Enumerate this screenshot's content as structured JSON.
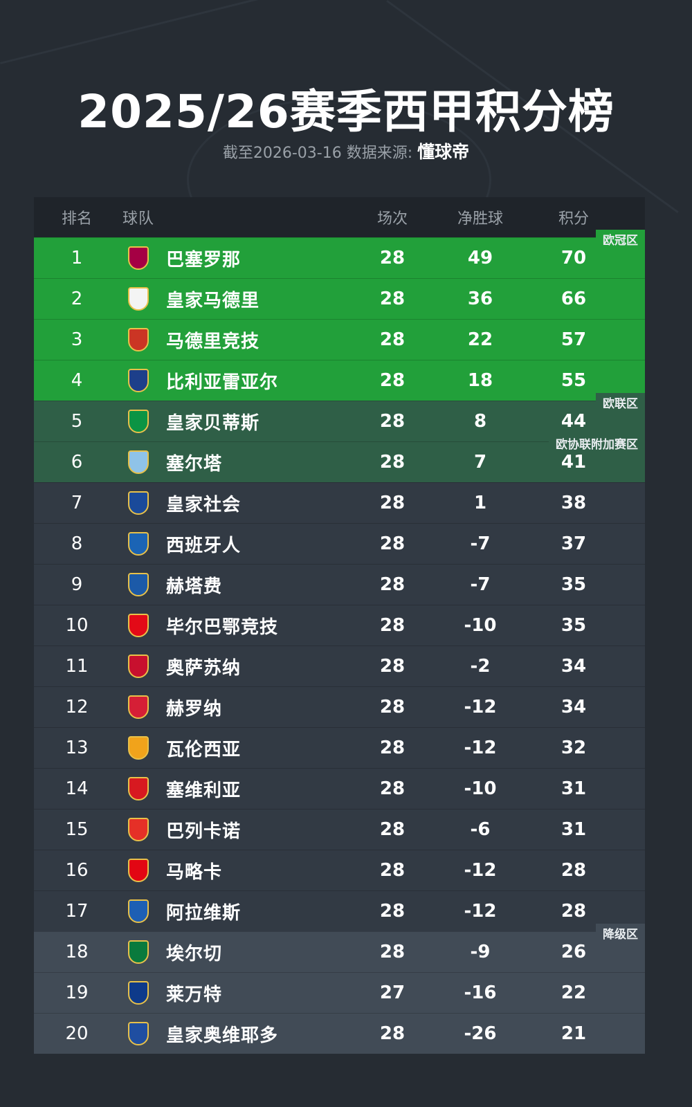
{
  "title": "2025/26赛季西甲积分榜",
  "subtitle": {
    "prefix": "截至2026-03-16 数据来源:",
    "source": "懂球帝"
  },
  "columns": {
    "rank": "排名",
    "team": "球队",
    "played": "场次",
    "goal_diff": "净胜球",
    "points": "积分"
  },
  "zones": {
    "ucl": "欧冠区",
    "uel": "欧联区",
    "uecl": "欧协联附加赛区",
    "releg": "降级区"
  },
  "colors": {
    "ucl": "#22a03a",
    "uel": "#2f5f47",
    "normal": "#323a44",
    "releg": "#414b56"
  },
  "rows": [
    {
      "rank": "1",
      "team": "巴塞罗那",
      "played": "28",
      "gd": "49",
      "pts": "70",
      "zone": "ucl",
      "crest": "#a50044"
    },
    {
      "rank": "2",
      "team": "皇家马德里",
      "played": "28",
      "gd": "36",
      "pts": "66",
      "zone": "ucl",
      "crest": "#f4f4f4"
    },
    {
      "rank": "3",
      "team": "马德里竞技",
      "played": "28",
      "gd": "22",
      "pts": "57",
      "zone": "ucl",
      "crest": "#cb3524"
    },
    {
      "rank": "4",
      "team": "比利亚雷亚尔",
      "played": "28",
      "gd": "18",
      "pts": "55",
      "zone": "ucl",
      "crest": "#1d3f8a"
    },
    {
      "rank": "5",
      "team": "皇家贝蒂斯",
      "played": "28",
      "gd": "8",
      "pts": "44",
      "zone": "uel",
      "crest": "#0b9444"
    },
    {
      "rank": "6",
      "team": "塞尔塔",
      "played": "28",
      "gd": "7",
      "pts": "41",
      "zone": "uel",
      "crest": "#8fc3e8"
    },
    {
      "rank": "7",
      "team": "皇家社会",
      "played": "28",
      "gd": "1",
      "pts": "38",
      "zone": "normal",
      "crest": "#1a4a9a"
    },
    {
      "rank": "8",
      "team": "西班牙人",
      "played": "28",
      "gd": "-7",
      "pts": "37",
      "zone": "normal",
      "crest": "#1b64b5"
    },
    {
      "rank": "9",
      "team": "赫塔费",
      "played": "28",
      "gd": "-7",
      "pts": "35",
      "zone": "normal",
      "crest": "#1c5aa8"
    },
    {
      "rank": "10",
      "team": "毕尔巴鄂竞技",
      "played": "28",
      "gd": "-10",
      "pts": "35",
      "zone": "normal",
      "crest": "#e30a17"
    },
    {
      "rank": "11",
      "team": "奥萨苏纳",
      "played": "28",
      "gd": "-2",
      "pts": "34",
      "zone": "normal",
      "crest": "#c8102e"
    },
    {
      "rank": "12",
      "team": "赫罗纳",
      "played": "28",
      "gd": "-12",
      "pts": "34",
      "zone": "normal",
      "crest": "#d51f36"
    },
    {
      "rank": "13",
      "team": "瓦伦西亚",
      "played": "28",
      "gd": "-12",
      "pts": "32",
      "zone": "normal",
      "crest": "#f1a31b"
    },
    {
      "rank": "14",
      "team": "塞维利亚",
      "played": "28",
      "gd": "-10",
      "pts": "31",
      "zone": "normal",
      "crest": "#d71920"
    },
    {
      "rank": "15",
      "team": "巴列卡诺",
      "played": "28",
      "gd": "-6",
      "pts": "31",
      "zone": "normal",
      "crest": "#e53027"
    },
    {
      "rank": "16",
      "team": "马略卡",
      "played": "28",
      "gd": "-12",
      "pts": "28",
      "zone": "normal",
      "crest": "#e20613"
    },
    {
      "rank": "17",
      "team": "阿拉维斯",
      "played": "28",
      "gd": "-12",
      "pts": "28",
      "zone": "normal",
      "crest": "#1d5fb4"
    },
    {
      "rank": "18",
      "team": "埃尔切",
      "played": "28",
      "gd": "-9",
      "pts": "26",
      "zone": "releg",
      "crest": "#0a7a3d"
    },
    {
      "rank": "19",
      "team": "莱万特",
      "played": "27",
      "gd": "-16",
      "pts": "22",
      "zone": "releg",
      "crest": "#0e3a8a"
    },
    {
      "rank": "20",
      "team": "皇家奥维耶多",
      "played": "28",
      "gd": "-26",
      "pts": "21",
      "zone": "releg",
      "crest": "#1f4ea1"
    }
  ]
}
